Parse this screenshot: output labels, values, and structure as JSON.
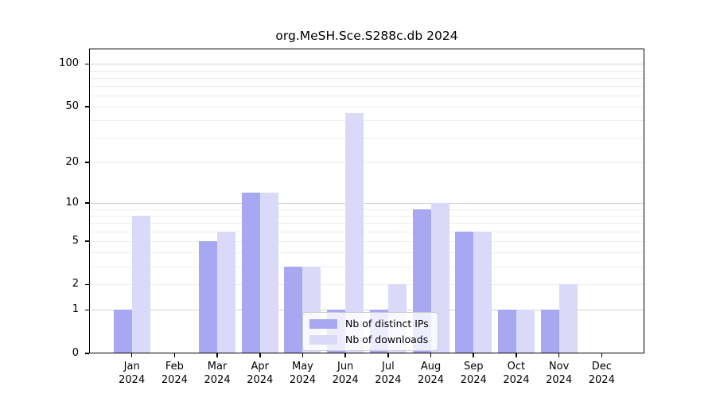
{
  "chart_data": {
    "type": "bar",
    "title": "org.MeSH.Sce.S288c.db 2024",
    "year_label": "2024",
    "categories": [
      "Jan",
      "Feb",
      "Mar",
      "Apr",
      "May",
      "Jun",
      "Jul",
      "Aug",
      "Sep",
      "Oct",
      "Nov",
      "Dec"
    ],
    "series": [
      {
        "name": "Nb of distinct IPs",
        "color": "#a7a7f2",
        "values": [
          1,
          0,
          5,
          12,
          3,
          1,
          1,
          9,
          6,
          1,
          1,
          0
        ]
      },
      {
        "name": "Nb of downloads",
        "color": "#dadaf8",
        "values": [
          8,
          0,
          6,
          12,
          3,
          45,
          2,
          10,
          6,
          1,
          2,
          0
        ]
      }
    ],
    "y_ticks": [
      0,
      1,
      2,
      5,
      10,
      20,
      50,
      100
    ],
    "grid_major": [
      1,
      10,
      100
    ],
    "grid_minor": [
      2,
      3,
      4,
      5,
      6,
      7,
      8,
      9,
      20,
      30,
      40,
      50,
      60,
      70,
      80,
      90
    ],
    "grid_major_color": "#d2d2d2",
    "grid_minor_color": "#ededed",
    "scale": "log10(1+x)",
    "ylim": [
      0,
      128
    ],
    "xlabel": "",
    "ylabel": "",
    "grid": true,
    "legend_position": "lower center"
  }
}
